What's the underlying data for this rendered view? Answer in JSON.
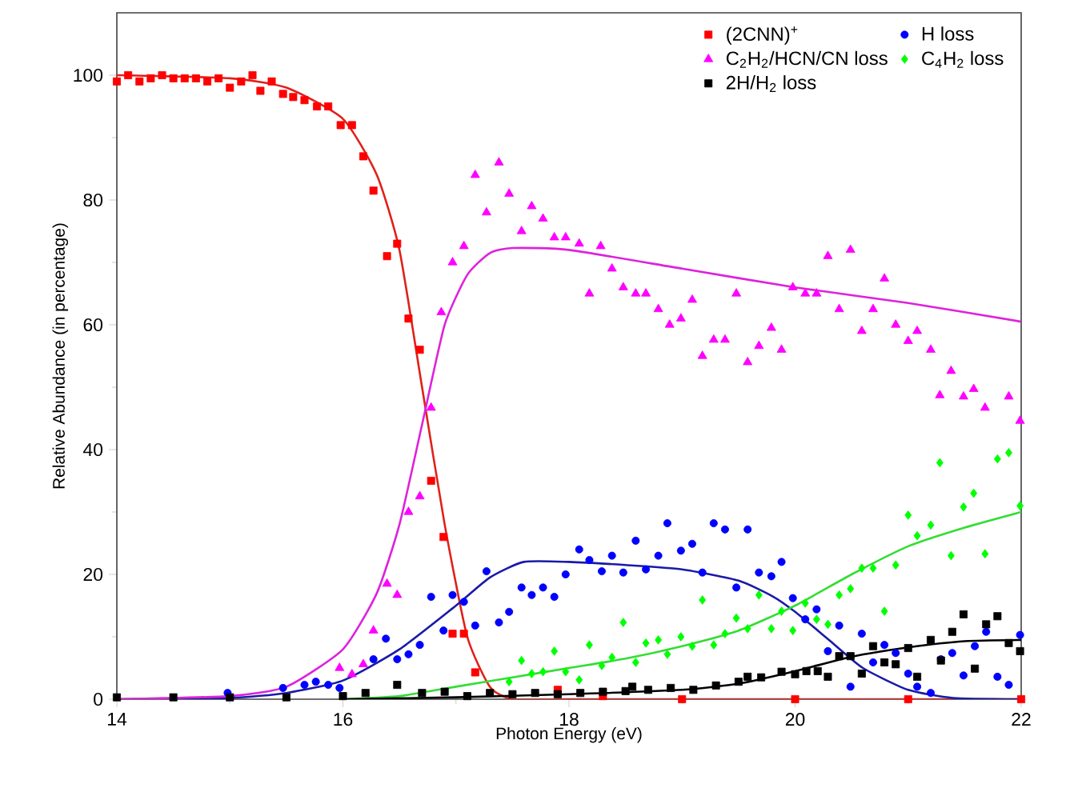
{
  "chart_data": {
    "type": "scatter",
    "xlabel": "Photon Energy (eV)",
    "ylabel": "Relative Abundance (in percentage)",
    "xlim": [
      14,
      22
    ],
    "xticks": [
      14,
      16,
      18,
      20,
      22
    ],
    "ylim": [
      0,
      110
    ],
    "yticks": [
      0,
      20,
      40,
      60,
      80,
      100
    ],
    "grid": false,
    "legend": "top right",
    "series": [
      {
        "type": "line",
        "color": "#e0201a",
        "x": [
          14,
          15,
          15.5,
          16,
          16.3,
          16.5,
          16.7,
          16.9,
          17.1,
          17.3,
          17.5,
          18,
          22
        ],
        "values": [
          100,
          99.5,
          98,
          93,
          84,
          72,
          50,
          28,
          10,
          2,
          0,
          0,
          0
        ]
      },
      {
        "type": "line",
        "color": "#1a1aa8",
        "x": [
          14,
          15,
          15.5,
          16,
          16.5,
          17,
          17.3,
          17.6,
          18,
          18.5,
          19,
          19.5,
          19.8,
          20,
          20.3,
          20.6,
          21,
          21.4,
          22
        ],
        "values": [
          0,
          0.2,
          1,
          3,
          8,
          15,
          19.5,
          22,
          22,
          21.5,
          20.8,
          19,
          16.5,
          14,
          9.5,
          5,
          1.5,
          0.2,
          0
        ]
      },
      {
        "type": "line",
        "color": "#dd22dd",
        "x": [
          14,
          15,
          15.5,
          16,
          16.3,
          16.5,
          16.7,
          16.9,
          17.1,
          17.3,
          17.5,
          18,
          19,
          20,
          21,
          22
        ],
        "values": [
          0,
          0.5,
          2,
          8,
          17,
          28,
          44,
          60,
          68,
          71.5,
          72.3,
          72,
          69,
          66,
          63.5,
          60.5
        ]
      },
      {
        "type": "line",
        "color": "#33dd33",
        "x": [
          16,
          16.5,
          17,
          17.5,
          18,
          18.5,
          19,
          19.5,
          20,
          20.5,
          21,
          21.5,
          22
        ],
        "values": [
          0,
          0.5,
          2,
          3.5,
          5,
          6.5,
          8.5,
          11,
          15,
          20,
          24.5,
          27.5,
          30
        ]
      },
      {
        "type": "line",
        "color": "#000000",
        "x": [
          16,
          17,
          18,
          19,
          19.5,
          20,
          20.5,
          21,
          21.5,
          22
        ],
        "values": [
          0,
          0.3,
          0.8,
          1.5,
          2.5,
          4.5,
          6.8,
          8.3,
          9.3,
          9.5
        ]
      },
      {
        "name": "(2CNN)$^{+}$",
        "marker": "square",
        "color": "#ff0000",
        "x": [
          14.0,
          14.1,
          14.2,
          14.3,
          14.4,
          14.5,
          14.6,
          14.7,
          14.8,
          14.9,
          15.0,
          15.1,
          15.2,
          15.27,
          15.37,
          15.47,
          15.56,
          15.66,
          15.77,
          15.87,
          15.98,
          16.08,
          16.18,
          16.27,
          16.39,
          16.48,
          16.58,
          16.68,
          16.78,
          16.89,
          16.97,
          17.07,
          17.17,
          17.3,
          17.5,
          17.9,
          18.3,
          19,
          20,
          21,
          22
        ],
        "values": [
          99,
          100,
          99,
          99.5,
          100,
          99.5,
          99.5,
          99.5,
          99,
          99.5,
          98,
          99,
          100,
          97.5,
          99,
          97,
          96.5,
          96,
          95,
          95,
          92,
          92,
          87,
          81.5,
          71,
          73,
          61,
          56,
          35,
          26,
          10.5,
          10.5,
          4.3,
          null,
          null,
          1.5,
          0.5,
          0,
          0,
          0,
          0
        ]
      },
      {
        "name": "H loss",
        "marker": "circle",
        "color": "#0000ff",
        "x": [
          14.98,
          15.47,
          15.66,
          15.76,
          15.87,
          15.97,
          16.27,
          16.38,
          16.48,
          16.58,
          16.68,
          16.78,
          16.89,
          16.97,
          17.07,
          17.17,
          17.27,
          17.38,
          17.47,
          17.58,
          17.67,
          17.77,
          17.87,
          17.97,
          18.09,
          18.18,
          18.29,
          18.38,
          18.48,
          18.59,
          18.68,
          18.79,
          18.87,
          18.99,
          19.09,
          19.18,
          19.28,
          19.38,
          19.48,
          19.58,
          19.68,
          19.79,
          19.88,
          19.98,
          20.09,
          20.19,
          20.29,
          20.39,
          20.49,
          20.59,
          20.69,
          20.79,
          20.89,
          21.0,
          21.08,
          21.2,
          21.29,
          21.39,
          21.49,
          21.59,
          21.69,
          21.79,
          21.89,
          21.99
        ],
        "values": [
          1,
          1.8,
          2.3,
          2.8,
          2.3,
          1.8,
          6.4,
          9.7,
          6.4,
          7.2,
          8.7,
          16.4,
          11,
          16.7,
          15.6,
          11.8,
          20.5,
          12.3,
          14,
          17.9,
          16.7,
          17.9,
          16.4,
          20,
          24,
          22.3,
          20.5,
          23,
          20.3,
          25.4,
          20.8,
          23,
          28.2,
          23.8,
          24.9,
          20.3,
          28.2,
          27.2,
          17.9,
          27.2,
          20.3,
          19.7,
          22,
          16.2,
          12.8,
          14.4,
          7.7,
          11.8,
          2,
          10.5,
          5.9,
          8.7,
          7.4,
          4.1,
          2,
          1,
          6.4,
          7.4,
          3.8,
          8.5,
          10.8,
          3.6,
          2.3,
          10.3
        ]
      },
      {
        "name": "C$_{2}$H$_{2}$/HCN/CN loss",
        "marker": "triangle",
        "color": "#ff00ff",
        "x": [
          15.97,
          16.08,
          16.18,
          16.27,
          16.39,
          16.48,
          16.58,
          16.68,
          16.78,
          16.87,
          16.97,
          17.07,
          17.17,
          17.27,
          17.38,
          17.47,
          17.58,
          17.67,
          17.77,
          17.87,
          17.97,
          18.09,
          18.18,
          18.28,
          18.38,
          18.48,
          18.59,
          18.68,
          18.79,
          18.89,
          18.99,
          19.09,
          19.18,
          19.28,
          19.38,
          19.48,
          19.58,
          19.68,
          19.79,
          19.88,
          19.98,
          20.09,
          20.19,
          20.29,
          20.39,
          20.49,
          20.59,
          20.69,
          20.79,
          20.89,
          21.0,
          21.08,
          21.2,
          21.28,
          21.38,
          21.49,
          21.58,
          21.68,
          21.89,
          21.99
        ],
        "values": [
          5,
          4,
          5.6,
          11,
          18.5,
          16.7,
          30,
          32.5,
          46.7,
          62,
          70,
          72.6,
          84,
          78,
          86,
          81,
          75,
          79,
          77,
          74,
          74,
          73,
          65,
          72.6,
          69,
          66,
          65,
          65,
          62.5,
          60,
          61,
          64,
          55,
          57.6,
          57.6,
          65,
          54,
          56.6,
          59.5,
          56,
          66,
          65,
          65,
          71,
          62.5,
          72,
          59,
          62.5,
          67.4,
          60,
          57.4,
          59,
          56,
          48.7,
          52.6,
          48.5,
          49.7,
          46.7,
          48.5,
          44.6
        ]
      },
      {
        "name": "C$_{4}$H$_{2}$ loss",
        "marker": "diamond",
        "color": "#00ff00",
        "x": [
          17.47,
          17.58,
          17.67,
          17.77,
          17.87,
          17.97,
          18.09,
          18.18,
          18.29,
          18.38,
          18.48,
          18.59,
          18.68,
          18.79,
          18.87,
          18.99,
          19.09,
          19.18,
          19.28,
          19.38,
          19.48,
          19.58,
          19.68,
          19.79,
          19.88,
          19.98,
          20.09,
          20.19,
          20.29,
          20.39,
          20.49,
          20.59,
          20.69,
          20.79,
          20.89,
          21.0,
          21.08,
          21.2,
          21.28,
          21.38,
          21.49,
          21.58,
          21.68,
          21.79,
          21.89,
          21.99
        ],
        "values": [
          2.8,
          6.2,
          4.1,
          4.4,
          7.7,
          4.4,
          3.1,
          8.7,
          5.4,
          6.7,
          12.3,
          5.9,
          9,
          9.5,
          7.2,
          10,
          8.5,
          15.9,
          8.7,
          10.5,
          13,
          11.3,
          16.7,
          11.3,
          14.1,
          11,
          15.4,
          12.8,
          12,
          16.7,
          17.7,
          21,
          21,
          14.1,
          21.5,
          29.5,
          26.2,
          27.9,
          37.9,
          23,
          30.8,
          33,
          23.3,
          38.5,
          39.5,
          31
        ]
      },
      {
        "name": "2H/H$_{2}$ loss",
        "marker": "square",
        "color": "#000000",
        "x": [
          14,
          14.5,
          15,
          15.5,
          16,
          16.2,
          16.48,
          16.7,
          16.9,
          17.1,
          17.3,
          17.5,
          17.7,
          17.9,
          18.1,
          18.3,
          18.5,
          18.56,
          18.7,
          18.9,
          19.1,
          19.3,
          19.5,
          19.58,
          19.7,
          19.88,
          20.0,
          20.1,
          20.2,
          20.29,
          20.39,
          20.49,
          20.59,
          20.69,
          20.79,
          20.89,
          21.0,
          21.08,
          21.2,
          21.29,
          21.39,
          21.49,
          21.59,
          21.69,
          21.79,
          21.89,
          21.99
        ],
        "values": [
          0.3,
          0.3,
          0.3,
          0.3,
          0.5,
          1,
          2.3,
          1,
          1.2,
          0.5,
          1,
          0.8,
          1,
          0.8,
          1,
          1.2,
          1.3,
          2,
          1.5,
          1.8,
          1.5,
          2.2,
          2.8,
          3.6,
          3.5,
          4.4,
          4,
          4.5,
          4.5,
          3.6,
          6.9,
          6.9,
          4.1,
          8.5,
          5.9,
          5.6,
          8.2,
          3.6,
          9.5,
          6.2,
          10.8,
          13.6,
          4.9,
          12,
          13.3,
          9,
          7.7
        ]
      }
    ]
  }
}
